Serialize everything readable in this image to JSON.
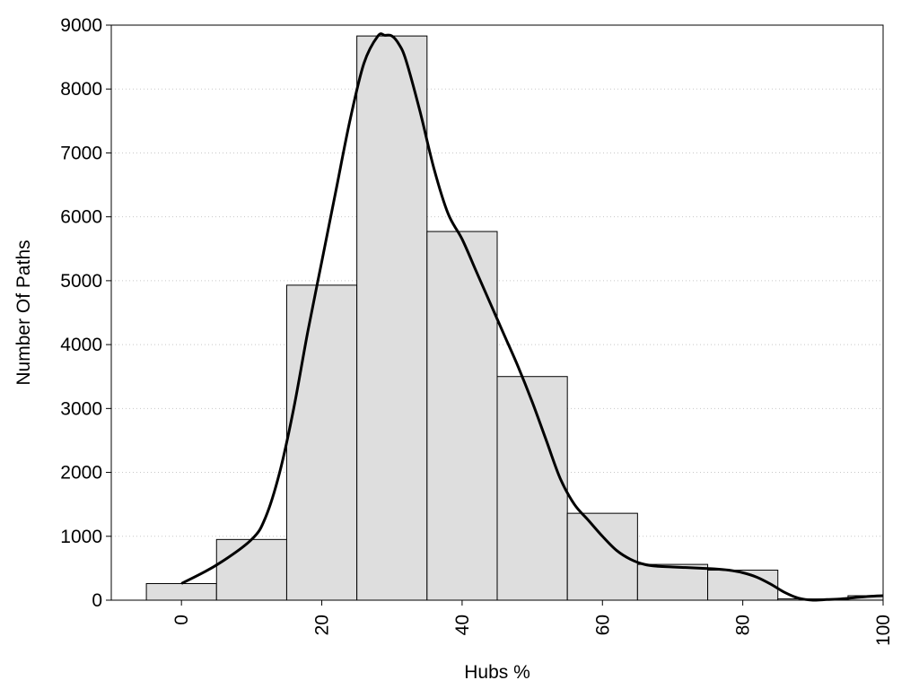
{
  "chart_data": {
    "type": "bar",
    "title": "",
    "xlabel": "Hubs %",
    "ylabel": "Number Of Paths",
    "xlim": [
      -10,
      100
    ],
    "ylim": [
      0,
      9000
    ],
    "xticks": [
      0,
      20,
      40,
      60,
      80,
      100
    ],
    "yticks": [
      0,
      1000,
      2000,
      3000,
      4000,
      5000,
      6000,
      7000,
      8000,
      9000
    ],
    "grid": "horizontal-dotted",
    "bin_width": 10,
    "bins": [
      {
        "center": 0,
        "value": 260
      },
      {
        "center": 10,
        "value": 950
      },
      {
        "center": 20,
        "value": 4930
      },
      {
        "center": 30,
        "value": 8830
      },
      {
        "center": 40,
        "value": 5770
      },
      {
        "center": 50,
        "value": 3500
      },
      {
        "center": 60,
        "value": 1360
      },
      {
        "center": 70,
        "value": 560
      },
      {
        "center": 80,
        "value": 470
      },
      {
        "center": 90,
        "value": 20
      },
      {
        "center": 100,
        "value": 70
      }
    ],
    "density_curve": {
      "x": [
        0,
        5,
        10,
        12,
        14,
        16,
        18,
        20,
        22,
        24,
        26,
        28,
        29,
        30,
        31,
        32,
        34,
        36,
        38,
        40,
        42,
        44,
        46,
        48,
        50,
        52,
        54,
        56,
        58,
        60,
        62,
        64,
        66,
        68,
        70,
        72,
        74,
        76,
        78,
        80,
        82,
        84,
        86,
        88,
        90,
        92,
        94,
        96,
        98,
        100
      ],
      "y": [
        260,
        550,
        950,
        1300,
        2000,
        3000,
        4200,
        5300,
        6400,
        7500,
        8400,
        8830,
        8840,
        8830,
        8700,
        8450,
        7650,
        6750,
        6050,
        5650,
        5150,
        4650,
        4150,
        3650,
        3100,
        2500,
        1900,
        1500,
        1250,
        1000,
        780,
        640,
        560,
        530,
        520,
        510,
        500,
        490,
        470,
        430,
        360,
        250,
        120,
        30,
        0,
        10,
        20,
        40,
        60,
        70
      ]
    }
  }
}
